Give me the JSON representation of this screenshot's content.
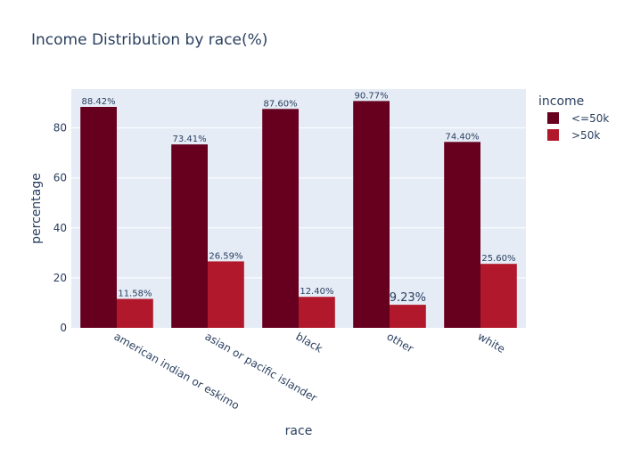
{
  "chart_data": {
    "type": "bar",
    "title": "Income Distribution by race(%)",
    "xlabel": "race",
    "ylabel": "percentage",
    "categories": [
      "american indian or eskimo",
      "asian or pacific islander",
      "black",
      "other",
      "white"
    ],
    "series": [
      {
        "name": "<=50k",
        "values": [
          88.42,
          73.41,
          87.6,
          90.77,
          74.4
        ],
        "labels": [
          "88.42%",
          "73.41%",
          "87.60%",
          "90.77%",
          "74.40%"
        ],
        "color": "#67001f"
      },
      {
        "name": ">50k",
        "values": [
          11.58,
          26.59,
          12.4,
          9.23,
          25.6
        ],
        "labels": [
          "11.58%",
          "26.59%",
          "12.40%",
          "9.23%",
          "25.60%"
        ],
        "color": "#b2182b"
      }
    ],
    "ylim": [
      0,
      95.55
    ],
    "yticks": [
      0,
      20,
      40,
      60,
      80
    ],
    "grid": true,
    "legend_title": "income",
    "legend_position": "top-right",
    "plot_bg": "#e5ecf6"
  }
}
